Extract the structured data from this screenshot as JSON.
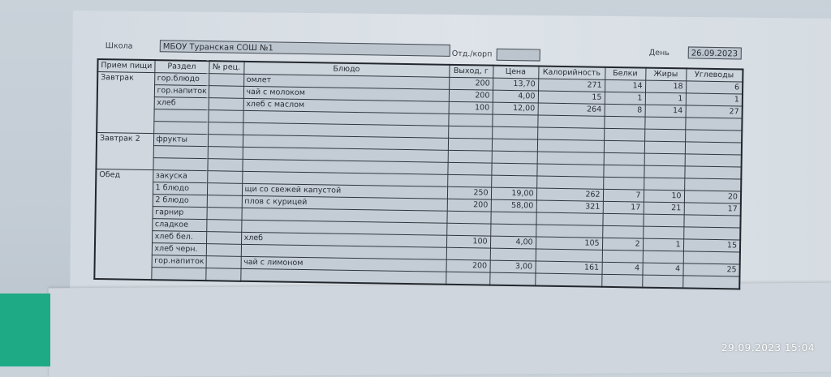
{
  "header": {
    "school_label": "Школа",
    "school_value": "МБОУ Туранская СОШ №1",
    "dept_label": "Отд./корп",
    "dept_value": "",
    "day_label": "День",
    "day_value": "26.09.2023"
  },
  "columns": [
    "Прием пищи",
    "Раздел",
    "№ рец.",
    "Блюдо",
    "Выход, г",
    "Цена",
    "Калорийность",
    "Белки",
    "Жиры",
    "Углеводы"
  ],
  "meals": [
    {
      "name": "Завтрак",
      "rows": [
        [
          "гор.блюдо",
          "",
          "омлет",
          "200",
          "13,70",
          "271",
          "14",
          "18",
          "6"
        ],
        [
          "гор.напиток",
          "",
          "чай с молоком",
          "200",
          "4,00",
          "15",
          "1",
          "1",
          "1"
        ],
        [
          "хлеб",
          "",
          "хлеб с маслом",
          "100",
          "12,00",
          "264",
          "8",
          "14",
          "27"
        ],
        [
          "",
          "",
          "",
          "",
          "",
          "",
          "",
          "",
          ""
        ],
        [
          "",
          "",
          "",
          "",
          "",
          "",
          "",
          "",
          ""
        ]
      ]
    },
    {
      "name": "Завтрак 2",
      "rows": [
        [
          "фрукты",
          "",
          "",
          "",
          "",
          "",
          "",
          "",
          ""
        ],
        [
          "",
          "",
          "",
          "",
          "",
          "",
          "",
          "",
          ""
        ],
        [
          "",
          "",
          "",
          "",
          "",
          "",
          "",
          "",
          ""
        ]
      ]
    },
    {
      "name": "Обед",
      "rows": [
        [
          "закуска",
          "",
          "",
          "",
          "",
          "",
          "",
          "",
          ""
        ],
        [
          "1 блюдо",
          "",
          "щи со свежей капустой",
          "250",
          "19,00",
          "262",
          "7",
          "10",
          "20"
        ],
        [
          "2 блюдо",
          "",
          "плов с курицей",
          "200",
          "58,00",
          "321",
          "17",
          "21",
          "17"
        ],
        [
          "гарнир",
          "",
          "",
          "",
          "",
          "",
          "",
          "",
          ""
        ],
        [
          "сладкое",
          "",
          "",
          "",
          "",
          "",
          "",
          "",
          ""
        ],
        [
          "хлеб бел.",
          "",
          "хлеб",
          "100",
          "4,00",
          "105",
          "2",
          "1",
          "15"
        ],
        [
          "хлеб черн.",
          "",
          "",
          "",
          "",
          "",
          "",
          "",
          ""
        ],
        [
          "гор.напиток",
          "",
          "чай с лимоном",
          "200",
          "3,00",
          "161",
          "4",
          "4",
          "25"
        ],
        [
          "",
          "",
          "",
          "",
          "",
          "",
          "",
          "",
          ""
        ]
      ]
    }
  ],
  "photo_timestamp": "29.09.2023  15:04",
  "colors": {
    "accent_green": "#1faa86"
  }
}
